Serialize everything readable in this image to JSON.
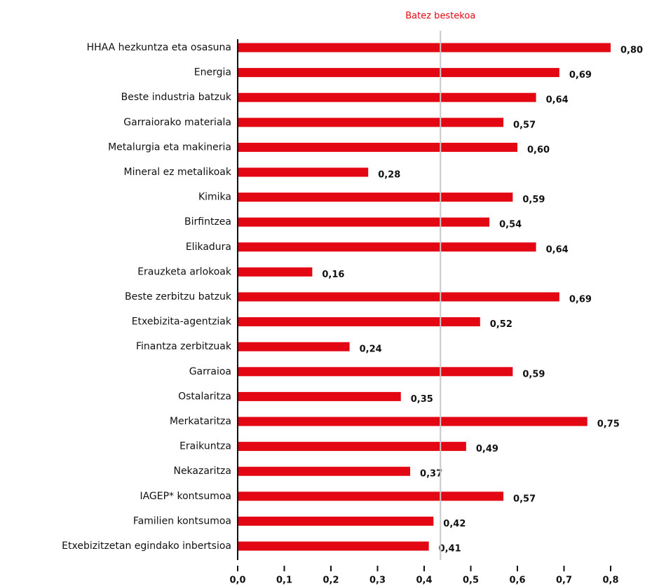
{
  "chart_data": {
    "type": "bar",
    "orientation": "horizontal",
    "color": "#e30613",
    "categories": [
      "HHAA hezkuntza eta osasuna",
      "Energia",
      "Beste industria batzuk",
      "Garraiorako materiala",
      "Metalurgia eta makineria",
      "Mineral ez metalikoak",
      "Kimika",
      "Birfintzea",
      "Elikadura",
      "Erauzketa arlokoak",
      "Beste zerbitzu batzuk",
      "Etxebizita-agentziak",
      "Finantza zerbitzuak",
      "Garraioa",
      "Ostalaritza",
      "Merkataritza",
      "Eraikuntza",
      "Nekazaritza",
      "IAGEP* kontsumoa",
      "Familien kontsumoa",
      "Etxebizitzetan egindako inbertsioa"
    ],
    "values": [
      0.8,
      0.69,
      0.64,
      0.57,
      0.6,
      0.28,
      0.59,
      0.54,
      0.64,
      0.16,
      0.69,
      0.52,
      0.24,
      0.59,
      0.35,
      0.75,
      0.49,
      0.37,
      0.57,
      0.42,
      0.41
    ],
    "value_labels": [
      "0,80",
      "0,69",
      "0,64",
      "0,57",
      "0,60",
      "0,28",
      "0,59",
      "0,54",
      "0,64",
      "0,16",
      "0,69",
      "0,52",
      "0,24",
      "0,59",
      "0,35",
      "0,75",
      "0,49",
      "0,37",
      "0,57",
      "0,42",
      "0,41"
    ],
    "xlim": [
      0,
      0.8
    ],
    "xticks": [
      {
        "value": 0,
        "label": "0,0"
      },
      {
        "value": 0.1,
        "label": "0,1"
      },
      {
        "value": 0.2,
        "label": "0,2"
      },
      {
        "value": 0.3,
        "label": "0,3"
      },
      {
        "value": 0.4,
        "label": "0,4"
      },
      {
        "value": 0.5,
        "label": "0,5"
      },
      {
        "value": 0.6,
        "label": "0,6"
      },
      {
        "value": 0.7,
        "label": "0,7"
      },
      {
        "value": 0.8,
        "label": "0,8"
      }
    ],
    "reference_line": {
      "label": "Batez bestekoa",
      "value": 0.435,
      "color": "#e30613"
    }
  }
}
